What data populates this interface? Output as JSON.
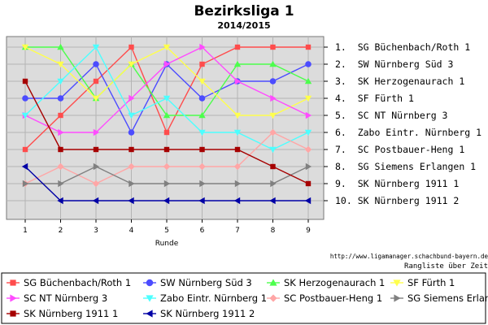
{
  "chart_data": {
    "type": "line",
    "title": "Bezirksliga 1",
    "subtitle": "2014/2015",
    "xlabel": "Runde",
    "x": [
      1,
      2,
      3,
      4,
      5,
      6,
      7,
      8,
      9
    ],
    "ylim": [
      1,
      10
    ],
    "y_inverted": true,
    "grid": true,
    "right_labels": [
      "1.  SG Büchenbach/Roth 1",
      "2.  SW Nürnberg Süd 3",
      "3.  SK Herzogenaurach 1",
      "4.  SF Fürth 1",
      "5.  SC NT Nürnberg 3",
      "6.  Zabo Eintr. Nürnberg 1",
      "7.  SC Postbauer-Heng 1",
      "8.  SG Siemens Erlangen 1",
      "9.  SK Nürnberg 1911 1",
      "10. SK Nürnberg 1911 2"
    ],
    "url": "http://www.ligamanager.schachbund-bayern.de",
    "caption": "Rangliste über Zeit",
    "legend_position": "bottom",
    "series": [
      {
        "name": "SG Büchenbach/Roth 1",
        "color": "#ff4c4c",
        "marker": "square",
        "values": [
          7,
          5,
          3,
          1,
          6,
          2,
          1,
          1,
          1
        ]
      },
      {
        "name": "SW Nürnberg Süd 3",
        "color": "#4c4cff",
        "marker": "circle",
        "values": [
          4,
          4,
          2,
          6,
          2,
          4,
          3,
          3,
          2
        ]
      },
      {
        "name": "SK Herzogenaurach 1",
        "color": "#4cff4c",
        "marker": "triangle-up",
        "values": [
          1,
          1,
          4,
          2,
          5,
          5,
          2,
          2,
          3
        ]
      },
      {
        "name": "SF Fürth 1",
        "color": "#ffff4c",
        "marker": "triangle-down",
        "values": [
          1,
          2,
          4,
          2,
          1,
          3,
          5,
          5,
          4
        ]
      },
      {
        "name": "SC NT Nürnberg 3",
        "color": "#ff4cff",
        "marker": "triangle-right",
        "values": [
          5,
          6,
          6,
          4,
          2,
          1,
          3,
          4,
          5
        ]
      },
      {
        "name": "Zabo Eintr. Nürnberg 1",
        "color": "#4cffff",
        "marker": "triangle-down",
        "values": [
          5,
          3,
          1,
          5,
          4,
          6,
          6,
          7,
          6
        ]
      },
      {
        "name": "SC Postbauer-Heng 1",
        "color": "#ffa6a6",
        "marker": "diamond",
        "values": [
          9,
          8,
          9,
          8,
          8,
          8,
          8,
          6,
          7
        ]
      },
      {
        "name": "SG Siemens Erlangen 1",
        "color": "#808080",
        "marker": "triangle-right",
        "values": [
          9,
          9,
          8,
          9,
          9,
          9,
          9,
          9,
          8
        ]
      },
      {
        "name": "SK Nürnberg 1911 1",
        "color": "#a60000",
        "marker": "square",
        "values": [
          3,
          7,
          7,
          7,
          7,
          7,
          7,
          8,
          9
        ]
      },
      {
        "name": "SK Nürnberg 1911 2",
        "color": "#0000a6",
        "marker": "triangle-left",
        "values": [
          8,
          10,
          10,
          10,
          10,
          10,
          10,
          10,
          10
        ]
      }
    ]
  }
}
